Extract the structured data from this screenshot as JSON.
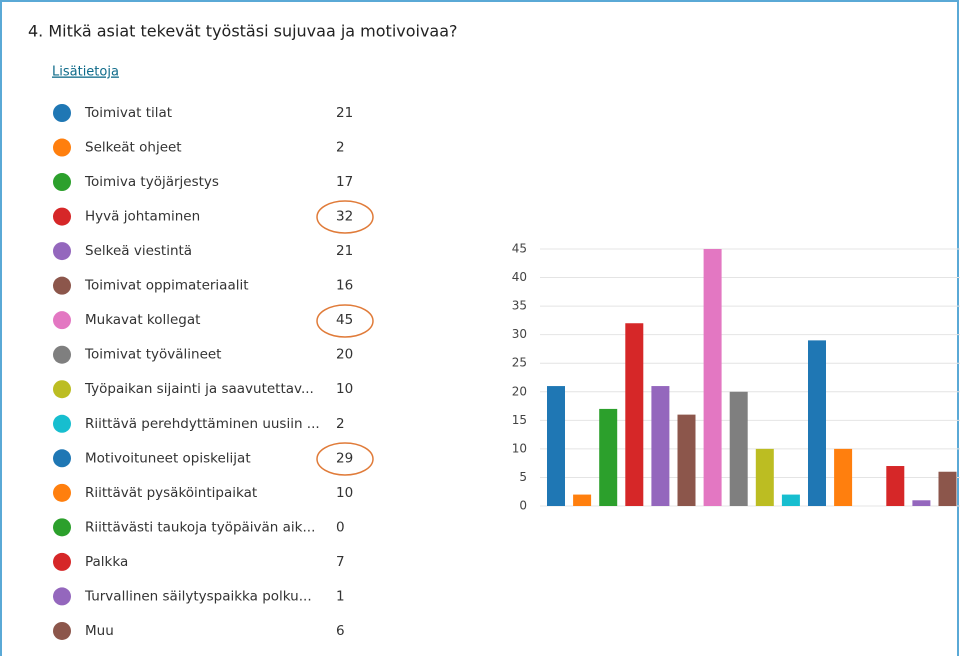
{
  "chart_data": {
    "type": "bar",
    "title": "4. Mitkä asiat tekevät työstäsi sujuvaa ja motivoivaa?",
    "link": "Lisätietoja",
    "categories": [
      "Toimivat tilat",
      "Selkeät ohjeet",
      "Toimiva työjärjestys",
      "Hyvä johtaminen",
      "Selkeä viestintä",
      "Toimivat oppimateriaalit",
      "Mukavat kollegat",
      "Toimivat työvälineet",
      "Työpaikan sijainti ja saavutettav...",
      "Riittävä perehdyttäminen uusiin ...",
      "Motivoituneet opiskelijat",
      "Riittävät pysäköintipaikat",
      "Riittävästi taukoja työpäivän aik...",
      "Palkka",
      "Turvallinen säilytyspaikka polku...",
      "Muu"
    ],
    "values": [
      21,
      2,
      17,
      32,
      21,
      16,
      45,
      20,
      10,
      2,
      29,
      10,
      0,
      7,
      1,
      6
    ],
    "colors": [
      "#1f77b4",
      "#ff7f0e",
      "#2ca02c",
      "#d62728",
      "#9467bd",
      "#8c564b",
      "#e377c2",
      "#7f7f7f",
      "#bcbd22",
      "#17becf",
      "#1f77b4",
      "#ff7f0e",
      "#2ca02c",
      "#d62728",
      "#9467bd",
      "#8c564b"
    ],
    "ylim": [
      0,
      45
    ],
    "yticks": [
      0,
      5,
      10,
      15,
      20,
      25,
      30,
      35,
      40,
      45
    ],
    "grid": true
  }
}
